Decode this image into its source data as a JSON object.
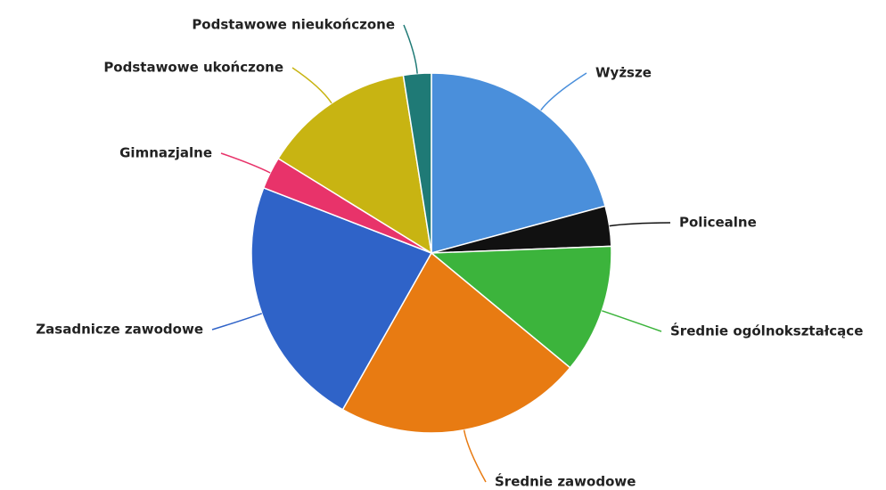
{
  "chart_data": {
    "type": "pie",
    "categories": [
      "Wyższe",
      "Policealne",
      "Średnie ogólnokształcące",
      "Średnie zawodowe",
      "Zasadnicze zawodowe",
      "Gimnazjalne",
      "Podstawowe ukończone",
      "Podstawowe nieukończone"
    ],
    "values": [
      20.8,
      3.6,
      11.6,
      22.2,
      22.7,
      2.9,
      13.7,
      2.5
    ],
    "colors": [
      "#4a8fdb",
      "#111111",
      "#3cb43c",
      "#e87b12",
      "#2f63c8",
      "#e8336a",
      "#c8b412",
      "#1f7a76"
    ]
  }
}
